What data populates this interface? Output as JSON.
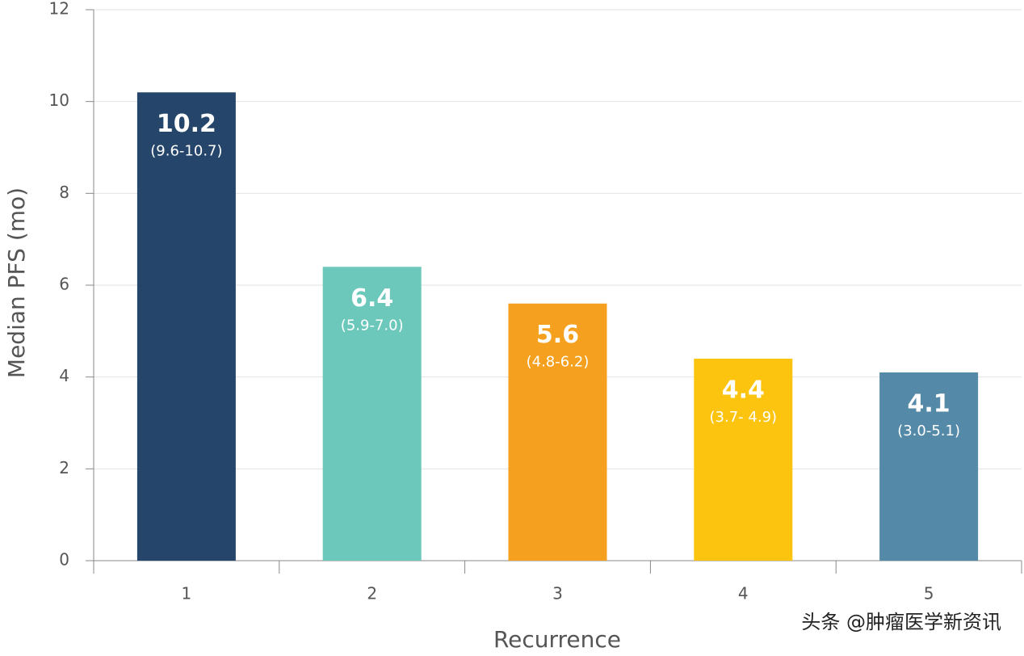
{
  "chart_data": {
    "type": "bar",
    "y_label": "Median PFS (mo)",
    "x_label": "Recurrence",
    "categories": [
      "1",
      "2",
      "3",
      "4",
      "5"
    ],
    "values": [
      10.2,
      6.4,
      5.6,
      4.4,
      4.1
    ],
    "ci_labels": [
      "(9.6-10.7)",
      "(5.9-7.0)",
      "(4.8-6.2)",
      "(3.7- 4.9)",
      "(3.0-5.1)"
    ],
    "colors": [
      "#25466a",
      "#6dc8bc",
      "#f5a11f",
      "#fcc30f",
      "#548aa8"
    ],
    "ylim": [
      0,
      12
    ],
    "yticks": [
      0,
      2,
      4,
      6,
      8,
      10,
      12
    ],
    "grid": true
  },
  "watermark": "头条 @肿瘤医学新资讯"
}
